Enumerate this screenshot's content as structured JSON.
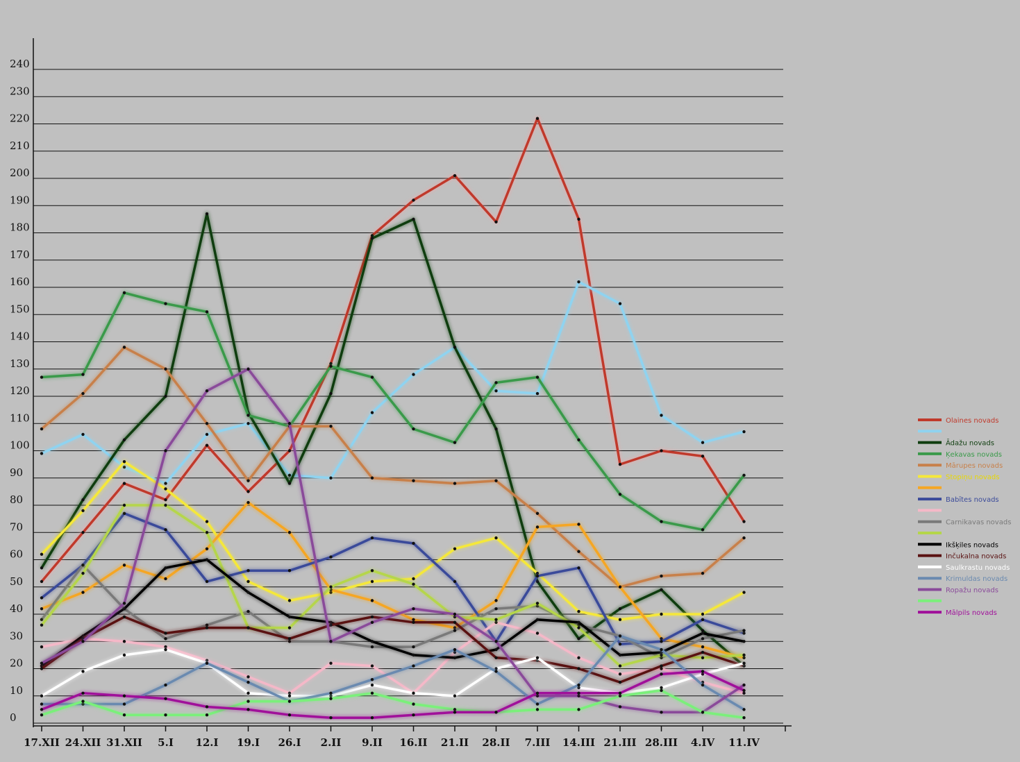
{
  "chart_data": {
    "type": "line",
    "title": "",
    "xlabel": "",
    "ylabel": "",
    "ylim": [
      0,
      240
    ],
    "yticks": [
      0,
      10,
      20,
      30,
      40,
      50,
      60,
      70,
      80,
      90,
      100,
      110,
      120,
      130,
      140,
      150,
      160,
      170,
      180,
      190,
      200,
      210,
      220,
      230,
      240
    ],
    "grid": true,
    "legend_position": "right",
    "categories": [
      "17.XII",
      "24.XII",
      "31.XII",
      "5.I",
      "12.I",
      "19.I",
      "26.I",
      "2.II",
      "9.II",
      "16.II",
      "21.II",
      "28.II",
      "7.III",
      "14.III",
      "21.III",
      "28.III",
      "4.IV",
      "11.IV"
    ],
    "series": [
      {
        "name": "Olaines novads",
        "color": "#c0392b",
        "values": [
          52,
          70,
          88,
          82,
          102,
          85,
          100,
          132,
          179,
          192,
          201,
          184,
          222,
          185,
          95,
          100,
          98,
          74
        ]
      },
      {
        "name": "",
        "color": "#8fd3f0",
        "values": [
          99,
          106,
          94,
          88,
          106,
          110,
          91,
          90,
          114,
          128,
          138,
          122,
          121,
          162,
          154,
          113,
          103,
          107
        ]
      },
      {
        "name": "Ādažu novads",
        "color": "#0f3d0f",
        "values": [
          57,
          82,
          104,
          120,
          187,
          114,
          88,
          121,
          178,
          185,
          138,
          108,
          52,
          31,
          42,
          49,
          34,
          21
        ]
      },
      {
        "name": "Ķekavas novads",
        "color": "#3a9a4a",
        "values": [
          127,
          128,
          158,
          154,
          151,
          113,
          109,
          131,
          127,
          108,
          103,
          125,
          127,
          104,
          84,
          74,
          71,
          91
        ]
      },
      {
        "name": "Mārupes novads",
        "color": "#c8804a",
        "values": [
          108,
          121,
          138,
          130,
          110,
          89,
          109,
          109,
          90,
          89,
          88,
          89,
          77,
          63,
          50,
          54,
          55,
          68
        ]
      },
      {
        "name": "Stopiņu novads",
        "color": "#f5e83a",
        "values": [
          62,
          78,
          96,
          86,
          74,
          52,
          45,
          48,
          52,
          53,
          64,
          68,
          55,
          41,
          38,
          40,
          40,
          48
        ]
      },
      {
        "name": "",
        "color": "#f5a623",
        "values": [
          42,
          48,
          58,
          53,
          64,
          81,
          70,
          49,
          45,
          38,
          35,
          45,
          72,
          73,
          50,
          31,
          28,
          24
        ]
      },
      {
        "name": "Babītes novads",
        "color": "#3a4a9a",
        "values": [
          46,
          58,
          77,
          71,
          52,
          56,
          56,
          61,
          68,
          66,
          52,
          30,
          54,
          57,
          29,
          30,
          38,
          33
        ]
      },
      {
        "name": "",
        "color": "#f5b8c8",
        "values": [
          28,
          31,
          30,
          28,
          23,
          17,
          11,
          22,
          21,
          11,
          26,
          37,
          33,
          24,
          18,
          20,
          15,
          11
        ]
      },
      {
        "name": "Carnikavas novads",
        "color": "#7a7a7a",
        "values": [
          38,
          58,
          42,
          31,
          36,
          41,
          30,
          30,
          28,
          28,
          34,
          42,
          43,
          36,
          32,
          24,
          31,
          34
        ]
      },
      {
        "name": "",
        "color": "#b5d64a",
        "values": [
          36,
          55,
          80,
          80,
          70,
          35,
          35,
          50,
          56,
          51,
          39,
          38,
          44,
          35,
          21,
          25,
          24,
          25
        ]
      },
      {
        "name": "Ikšķiles novads",
        "color": "#000000",
        "values": [
          21,
          32,
          42,
          57,
          60,
          48,
          39,
          37,
          30,
          25,
          24,
          27,
          38,
          37,
          25,
          26,
          33,
          30
        ]
      },
      {
        "name": "Inčukalna novads",
        "color": "#5a1212",
        "values": [
          20,
          31,
          39,
          33,
          35,
          35,
          31,
          36,
          39,
          37,
          37,
          24,
          23,
          20,
          15,
          21,
          26,
          21
        ]
      },
      {
        "name": "Saulkrastu novads",
        "color": "#ffffff",
        "values": [
          10,
          19,
          25,
          27,
          22,
          11,
          10,
          10,
          14,
          11,
          10,
          20,
          24,
          13,
          11,
          13,
          18,
          22
        ]
      },
      {
        "name": "Krimuldas novads",
        "color": "#6a8ab0",
        "values": [
          7,
          7,
          7,
          14,
          22,
          15,
          8,
          11,
          16,
          21,
          27,
          19,
          7,
          14,
          32,
          27,
          14,
          5
        ]
      },
      {
        "name": "Ropažu novads",
        "color": "#8a4a9a",
        "values": [
          22,
          30,
          44,
          100,
          122,
          130,
          110,
          30,
          37,
          42,
          40,
          30,
          10,
          10,
          6,
          4,
          4,
          14
        ]
      },
      {
        "name": "",
        "color": "#7af07a",
        "values": [
          3,
          8,
          3,
          3,
          3,
          8,
          8,
          9,
          11,
          7,
          5,
          4,
          5,
          5,
          10,
          12,
          4,
          2
        ]
      },
      {
        "name": "Mālpils novads",
        "color": "#a0109a",
        "values": [
          5,
          11,
          10,
          9,
          6,
          5,
          3,
          2,
          2,
          3,
          4,
          4,
          11,
          11,
          11,
          18,
          19,
          12
        ]
      }
    ]
  }
}
